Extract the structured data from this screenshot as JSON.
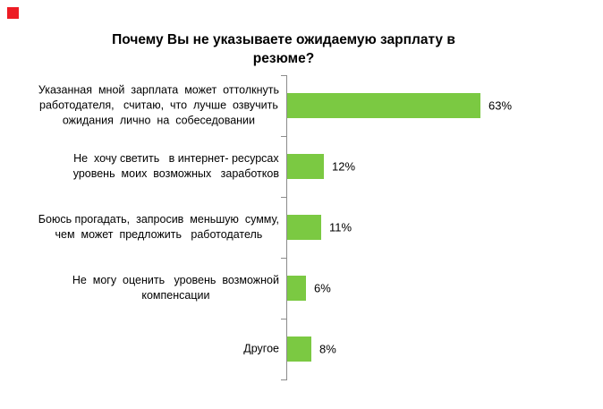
{
  "colors": {
    "bar_green": "#7bc942",
    "axis_gray": "#8c8c8c",
    "logo_red": "#ed1c24",
    "text": "#000000",
    "background": "#ffffff"
  },
  "title_lines": {
    "line1": "Почему Вы не указываете ожидаемую зарплату в",
    "line2": "резюме?"
  },
  "chart_data": {
    "type": "bar",
    "orientation": "horizontal",
    "title": "Почему Вы не указываете ожидаемую зарплату в резюме?",
    "categories": [
      "Указанная мной зарплата может оттолкнуть работодателя, считаю, что лучше озвучить ожидания лично на собеседовании",
      "Не хочу светить в интернет-ресурсах уровень моих возможных заработков",
      "Боюсь прогадать, запросив меньшую сумму, чем может предложить работодатель",
      "Не могу оценить уровень возможной компенсации",
      "Другое"
    ],
    "categories_display": [
      "Указанная  мной  зарплата  может  оттолкнуть\nработодателя,   считаю,  что  лучше  озвучить\nожидания  лично  на  собеседовании",
      "Не  хочу светить   в интернет- ресурсах\nуровень  моих  возможных   заработков",
      "Боюсь прогадать,  запросив  меньшую  сумму,\nчем  может  предложить   работодатель",
      "Не  могу  оценить   уровень  возможной\nкомпенсации",
      "Другое"
    ],
    "values": [
      63,
      12,
      11,
      6,
      8
    ],
    "value_labels": [
      "63%",
      "12%",
      "11%",
      "6%",
      "8%"
    ],
    "xlabel": "",
    "ylabel": "",
    "xlim": [
      0,
      100
    ],
    "grid": false,
    "legend": false,
    "bar_color": "#7bc942"
  }
}
